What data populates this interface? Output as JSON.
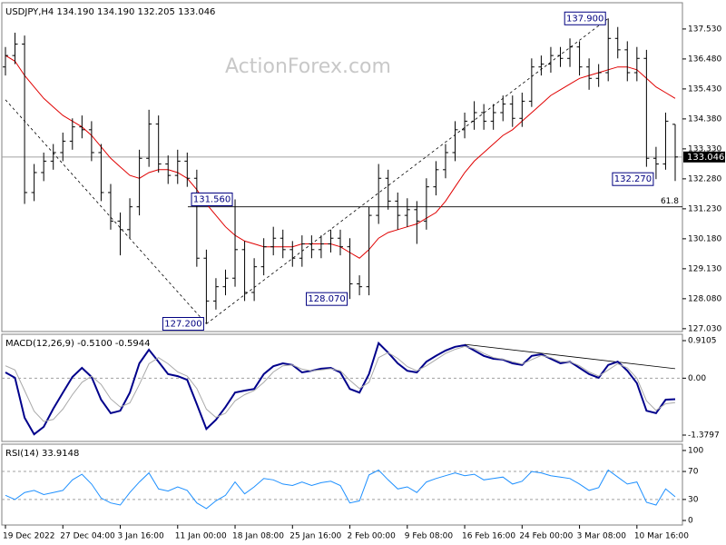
{
  "chart_data": [
    {
      "type": "ohlc",
      "title": "USDJPY,H4 134.190 134.190 132.205 133.046",
      "watermark": "ActionForex.com",
      "categories": [
        "19 Dec 2022",
        null,
        null,
        null,
        null,
        null,
        "27 Dec 04:00",
        null,
        null,
        null,
        null,
        null,
        "3 Jan 16:00",
        null,
        null,
        null,
        null,
        null,
        "11 Jan 00:00",
        null,
        null,
        null,
        null,
        null,
        "18 Jan 08:00",
        null,
        null,
        null,
        null,
        null,
        "25 Jan 16:00",
        null,
        null,
        null,
        null,
        null,
        "2 Feb 00:00",
        null,
        null,
        null,
        null,
        null,
        "9 Feb 08:00",
        null,
        null,
        null,
        null,
        null,
        "16 Feb 16:00",
        null,
        null,
        null,
        null,
        null,
        "24 Feb 00:00",
        null,
        null,
        null,
        null,
        null,
        "3 Mar 08:00",
        null,
        null,
        null,
        null,
        null,
        "10 Mar 16:00",
        null,
        null,
        null,
        null
      ],
      "open": [
        136.2,
        136.6,
        137.0,
        131.8,
        132.5,
        132.9,
        133.2,
        133.6,
        134.1,
        134.0,
        133.2,
        131.8,
        130.8,
        130.5,
        131.3,
        133.0,
        134.2,
        132.8,
        132.4,
        132.9,
        132.3,
        129.5,
        128.0,
        128.5,
        128.8,
        129.8,
        128.3,
        129.2,
        129.9,
        130.2,
        129.8,
        129.5,
        130.0,
        129.8,
        130.0,
        130.2,
        129.9,
        128.6,
        128.5,
        131.0,
        132.3,
        131.5,
        131.0,
        131.2,
        130.8,
        132.0,
        132.6,
        133.2,
        134.0,
        134.3,
        134.6,
        134.3,
        134.6,
        134.9,
        134.4,
        135.0,
        136.2,
        136.3,
        136.6,
        136.5,
        136.9,
        136.2,
        135.8,
        136.0,
        137.2,
        136.8,
        136.0,
        136.5,
        133.0,
        132.8,
        134.19
      ],
      "high": [
        136.9,
        137.4,
        137.3,
        132.8,
        133.2,
        133.5,
        133.9,
        134.4,
        134.5,
        134.3,
        133.5,
        132.1,
        131.1,
        131.6,
        133.3,
        134.7,
        134.5,
        133.1,
        133.3,
        133.2,
        132.6,
        129.8,
        128.8,
        129.1,
        131.56,
        130.1,
        129.5,
        130.2,
        130.6,
        130.5,
        130.1,
        130.3,
        130.3,
        130.3,
        130.5,
        130.5,
        130.2,
        128.9,
        131.3,
        132.8,
        132.6,
        131.8,
        131.6,
        131.5,
        132.3,
        132.9,
        133.5,
        134.3,
        134.6,
        135.0,
        134.9,
        134.9,
        135.2,
        135.2,
        135.3,
        136.5,
        136.6,
        136.9,
        136.9,
        137.2,
        137.1,
        136.5,
        136.3,
        137.9,
        137.6,
        137.1,
        136.9,
        136.8,
        133.4,
        134.6,
        134.19
      ],
      "low": [
        135.9,
        136.3,
        131.4,
        131.5,
        132.2,
        132.6,
        132.9,
        133.3,
        133.7,
        132.9,
        131.5,
        130.5,
        129.6,
        130.2,
        131.0,
        132.7,
        132.5,
        132.1,
        132.1,
        132.0,
        129.2,
        127.2,
        127.7,
        128.2,
        128.5,
        128.0,
        128.0,
        128.9,
        129.6,
        129.5,
        129.2,
        129.2,
        129.5,
        129.5,
        129.7,
        129.6,
        128.07,
        128.2,
        128.2,
        130.7,
        131.2,
        130.5,
        130.6,
        130.0,
        130.5,
        131.7,
        132.3,
        132.9,
        133.7,
        134.0,
        134.0,
        134.0,
        134.3,
        134.1,
        134.1,
        134.8,
        135.9,
        136.0,
        136.2,
        136.2,
        135.9,
        135.4,
        135.5,
        135.7,
        136.5,
        135.7,
        135.7,
        132.7,
        132.27,
        132.6,
        132.205
      ],
      "close": [
        136.6,
        137.0,
        131.8,
        132.5,
        132.9,
        133.2,
        133.6,
        134.1,
        134.0,
        133.2,
        131.8,
        130.8,
        130.5,
        131.3,
        133.0,
        134.2,
        132.8,
        132.4,
        132.9,
        132.3,
        129.5,
        128.0,
        128.5,
        128.8,
        129.8,
        128.3,
        129.2,
        129.9,
        130.2,
        129.8,
        129.5,
        130.0,
        129.8,
        130.0,
        130.2,
        129.9,
        128.6,
        128.5,
        131.0,
        132.3,
        131.5,
        131.0,
        131.2,
        130.8,
        132.0,
        132.6,
        133.2,
        134.0,
        134.3,
        134.6,
        134.3,
        134.6,
        134.9,
        134.4,
        135.0,
        136.2,
        136.3,
        136.6,
        136.5,
        136.9,
        136.2,
        135.8,
        136.0,
        137.2,
        136.8,
        136.0,
        136.5,
        133.0,
        132.8,
        134.3,
        133.046
      ],
      "color": "#000000",
      "overlays": [
        {
          "color": "#e00000",
          "values": [
            136.6,
            136.4,
            135.9,
            135.5,
            135.1,
            134.8,
            134.5,
            134.3,
            134.1,
            133.8,
            133.4,
            133.0,
            132.7,
            132.4,
            132.3,
            132.5,
            132.6,
            132.6,
            132.5,
            132.3,
            131.9,
            131.4,
            131.0,
            130.6,
            130.3,
            130.1,
            130.0,
            129.9,
            129.9,
            129.9,
            129.9,
            130.0,
            130.0,
            130.0,
            130.0,
            129.9,
            129.7,
            129.5,
            129.8,
            130.2,
            130.4,
            130.5,
            130.6,
            130.7,
            130.9,
            131.1,
            131.5,
            132.0,
            132.5,
            132.9,
            133.2,
            133.5,
            133.8,
            134.0,
            134.3,
            134.6,
            134.9,
            135.2,
            135.4,
            135.6,
            135.8,
            135.9,
            136.0,
            136.1,
            136.2,
            136.2,
            136.1,
            135.8,
            135.5,
            135.3,
            135.1
          ]
        }
      ],
      "ylim": [
        126.93,
        138.45
      ],
      "yticks": [
        {
          "value": 137.53,
          "label": "137.530"
        },
        {
          "value": 136.48,
          "label": "136.480"
        },
        {
          "value": 135.43,
          "label": "135.430"
        },
        {
          "value": 134.38,
          "label": "134.380"
        },
        {
          "value": 133.33,
          "label": "133.330"
        },
        {
          "value": 132.28,
          "label": "132.280"
        },
        {
          "value": 131.23,
          "label": "131.230"
        },
        {
          "value": 130.18,
          "label": "130.180"
        },
        {
          "value": 129.13,
          "label": "129.130"
        },
        {
          "value": 128.08,
          "label": "128.080"
        },
        {
          "value": 127.03,
          "label": "127.030"
        }
      ],
      "current_price": {
        "value": 133.046,
        "label": "133.046"
      },
      "levels": [
        {
          "value": 131.3,
          "label": "61.8"
        }
      ],
      "trendlines": [
        {
          "x": [
            0,
            21
          ],
          "y": [
            135.05,
            127.2
          ],
          "style": "dashed"
        },
        {
          "x": [
            21,
            63
          ],
          "y": [
            127.2,
            137.9
          ],
          "style": "dashed"
        }
      ],
      "annotations": [
        {
          "value": 137.9,
          "label": "137.900"
        },
        {
          "value": 131.56,
          "label": "131.560"
        },
        {
          "value": 132.27,
          "label": "132.270"
        },
        {
          "value": 128.07,
          "label": "128.070"
        },
        {
          "value": 127.2,
          "label": "127.200"
        }
      ]
    },
    {
      "type": "line",
      "title": "MACD(12,26,9) -0.5100 -0.5944",
      "series": [
        {
          "color": "#00008b",
          "width": 2,
          "values": [
            0.14,
            0.01,
            -0.96,
            -1.36,
            -1.18,
            -0.74,
            -0.35,
            0.03,
            0.25,
            0.03,
            -0.52,
            -0.85,
            -0.79,
            -0.35,
            0.36,
            0.69,
            0.4,
            0.1,
            0.05,
            -0.04,
            -0.63,
            -1.23,
            -1.01,
            -0.7,
            -0.35,
            -0.3,
            -0.26,
            0.1,
            0.29,
            0.36,
            0.32,
            0.14,
            0.18,
            0.23,
            0.25,
            0.14,
            -0.26,
            -0.35,
            0.1,
            0.85,
            0.62,
            0.36,
            0.18,
            0.14,
            0.4,
            0.54,
            0.67,
            0.76,
            0.8,
            0.67,
            0.54,
            0.47,
            0.45,
            0.36,
            0.32,
            0.54,
            0.58,
            0.47,
            0.36,
            0.4,
            0.25,
            0.1,
            0.01,
            0.32,
            0.4,
            0.18,
            -0.12,
            -0.79,
            -0.85,
            -0.52,
            -0.51
          ]
        },
        {
          "color": "#a9a9a9",
          "width": 1,
          "values": [
            0.3,
            0.2,
            -0.3,
            -0.8,
            -1.05,
            -1.0,
            -0.75,
            -0.4,
            -0.1,
            0.05,
            -0.15,
            -0.5,
            -0.7,
            -0.6,
            -0.15,
            0.35,
            0.5,
            0.35,
            0.15,
            0.05,
            -0.25,
            -0.75,
            -0.95,
            -0.85,
            -0.55,
            -0.4,
            -0.3,
            -0.1,
            0.15,
            0.3,
            0.32,
            0.22,
            0.18,
            0.2,
            0.23,
            0.18,
            -0.05,
            -0.25,
            -0.1,
            0.5,
            0.62,
            0.48,
            0.28,
            0.18,
            0.3,
            0.45,
            0.6,
            0.7,
            0.77,
            0.72,
            0.6,
            0.5,
            0.46,
            0.4,
            0.34,
            0.45,
            0.55,
            0.5,
            0.4,
            0.4,
            0.3,
            0.15,
            0.05,
            0.2,
            0.35,
            0.25,
            0.0,
            -0.55,
            -0.78,
            -0.62,
            -0.5944
          ]
        }
      ],
      "ylim": [
        -1.534,
        1.065
      ],
      "yticks": [
        0.9105,
        {
          "value": 0,
          "label": "0.00"
        },
        -1.3797
      ],
      "dashed_levels": [
        0
      ],
      "trendlines": [
        {
          "x": [
            48,
            70
          ],
          "y": [
            0.82,
            0.23
          ],
          "style": "solid"
        }
      ]
    },
    {
      "type": "line",
      "title": "RSI(14) 33.9148",
      "series": [
        {
          "color": "#1e90ff",
          "width": 1,
          "values": [
            36,
            30,
            40,
            43,
            37,
            40,
            43,
            58,
            66,
            52,
            32,
            25,
            22,
            40,
            55,
            68,
            45,
            42,
            48,
            43,
            25,
            17,
            28,
            36,
            55,
            38,
            48,
            60,
            58,
            52,
            50,
            55,
            50,
            54,
            56,
            50,
            25,
            28,
            65,
            72,
            58,
            45,
            48,
            40,
            55,
            60,
            64,
            68,
            64,
            66,
            58,
            60,
            62,
            52,
            56,
            70,
            68,
            64,
            62,
            60,
            52,
            43,
            47,
            72,
            62,
            52,
            55,
            26,
            22,
            45,
            33.9148
          ]
        }
      ],
      "ylim": [
        -6.5,
        109
      ],
      "yticks": [
        100,
        70,
        30,
        0
      ],
      "dashed_levels": [
        70,
        30
      ]
    }
  ]
}
